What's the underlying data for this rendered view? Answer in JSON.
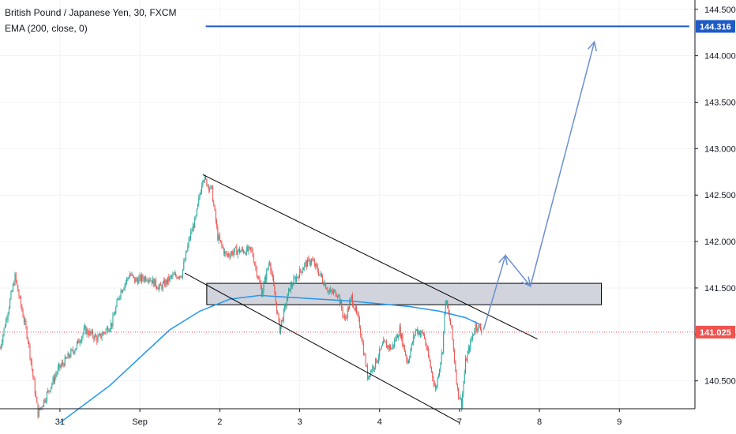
{
  "legend": {
    "symbol": "British Pound / Japanese Yen, 30, FXCM",
    "indicator": "EMA (200, close, 0)"
  },
  "colors": {
    "up": "#26a69a",
    "down": "#ef5350",
    "ema": "#2196f3",
    "target": "#1e5bc6",
    "last_price": "#ef5350",
    "arrow": "#6b8fd0",
    "channel": "#000000",
    "zone_fill": "#d1d4dc"
  },
  "chart_data": {
    "type": "candlestick",
    "title": "British Pound / Japanese Yen, 30, FXCM",
    "timeframe": "30",
    "x_tick_labels": [
      "31",
      "Sep",
      "2",
      "3",
      "4",
      "7",
      "8",
      "9"
    ],
    "x_tick_index": [
      60,
      140,
      220,
      300,
      380,
      460,
      540,
      620
    ],
    "y_range": [
      140.2,
      144.6
    ],
    "y_ticks": [
      140.5,
      141.0,
      141.5,
      142.0,
      142.5,
      143.0,
      143.5,
      144.0,
      144.5
    ],
    "y_tick_labels": [
      "140.500",
      "141.000",
      "141.500",
      "142.000",
      "142.500",
      "143.000",
      "143.500",
      "144.000",
      "144.500"
    ],
    "last_price": 141.025,
    "last_price_label": "141.025",
    "target_price": 144.316,
    "target_price_label": "144.316",
    "close_path": [
      [
        0,
        140.85
      ],
      [
        15,
        141.62
      ],
      [
        28,
        140.95
      ],
      [
        38,
        140.15
      ],
      [
        48,
        140.38
      ],
      [
        58,
        140.62
      ],
      [
        75,
        140.85
      ],
      [
        85,
        141.05
      ],
      [
        98,
        140.95
      ],
      [
        112,
        141.12
      ],
      [
        120,
        141.45
      ],
      [
        130,
        141.65
      ],
      [
        135,
        141.58
      ],
      [
        148,
        141.62
      ],
      [
        160,
        141.5
      ],
      [
        172,
        141.62
      ],
      [
        182,
        141.65
      ],
      [
        190,
        142.05
      ],
      [
        196,
        142.25
      ],
      [
        203,
        142.7
      ],
      [
        212,
        142.55
      ],
      [
        218,
        142.05
      ],
      [
        226,
        141.85
      ],
      [
        236,
        141.9
      ],
      [
        252,
        141.9
      ],
      [
        262,
        141.45
      ],
      [
        270,
        141.8
      ],
      [
        280,
        141.05
      ],
      [
        290,
        141.5
      ],
      [
        305,
        141.75
      ],
      [
        312,
        141.8
      ],
      [
        320,
        141.65
      ],
      [
        330,
        141.45
      ],
      [
        338,
        141.45
      ],
      [
        345,
        141.15
      ],
      [
        352,
        141.4
      ],
      [
        360,
        141.1
      ],
      [
        368,
        140.55
      ],
      [
        376,
        140.7
      ],
      [
        384,
        140.9
      ],
      [
        392,
        140.85
      ],
      [
        400,
        141.05
      ],
      [
        408,
        140.7
      ],
      [
        416,
        141.05
      ],
      [
        424,
        141.0
      ],
      [
        430,
        140.7
      ],
      [
        436,
        140.4
      ],
      [
        443,
        140.85
      ],
      [
        446,
        141.38
      ],
      [
        452,
        141.05
      ],
      [
        458,
        140.4
      ],
      [
        462,
        140.25
      ],
      [
        466,
        140.7
      ],
      [
        472,
        140.95
      ],
      [
        476,
        141.1
      ],
      [
        482,
        141.05
      ]
    ],
    "ema_path": [
      [
        60,
        140.05
      ],
      [
        110,
        140.45
      ],
      [
        140,
        140.75
      ],
      [
        170,
        141.05
      ],
      [
        200,
        141.25
      ],
      [
        230,
        141.38
      ],
      [
        260,
        141.42
      ],
      [
        290,
        141.4
      ],
      [
        320,
        141.38
      ],
      [
        350,
        141.36
      ],
      [
        380,
        141.33
      ],
      [
        410,
        141.3
      ],
      [
        440,
        141.25
      ],
      [
        466,
        141.18
      ],
      [
        482,
        141.1
      ]
    ],
    "annotations": {
      "channel_upper": [
        [
          203,
          142.72
        ],
        [
          538,
          140.95
        ]
      ],
      "channel_lower": [
        [
          185,
          141.66
        ],
        [
          460,
          140.05
        ]
      ],
      "zone": {
        "x_from": 207,
        "x_to": 602,
        "y_low": 141.32,
        "y_high": 141.55
      },
      "target_line": {
        "x_from": 206,
        "x_to": 690,
        "price": 144.316
      },
      "arrow_path": [
        [
          484,
          141.05
        ],
        [
          506,
          141.85
        ],
        [
          531,
          141.52
        ],
        [
          595,
          144.15
        ]
      ]
    }
  }
}
